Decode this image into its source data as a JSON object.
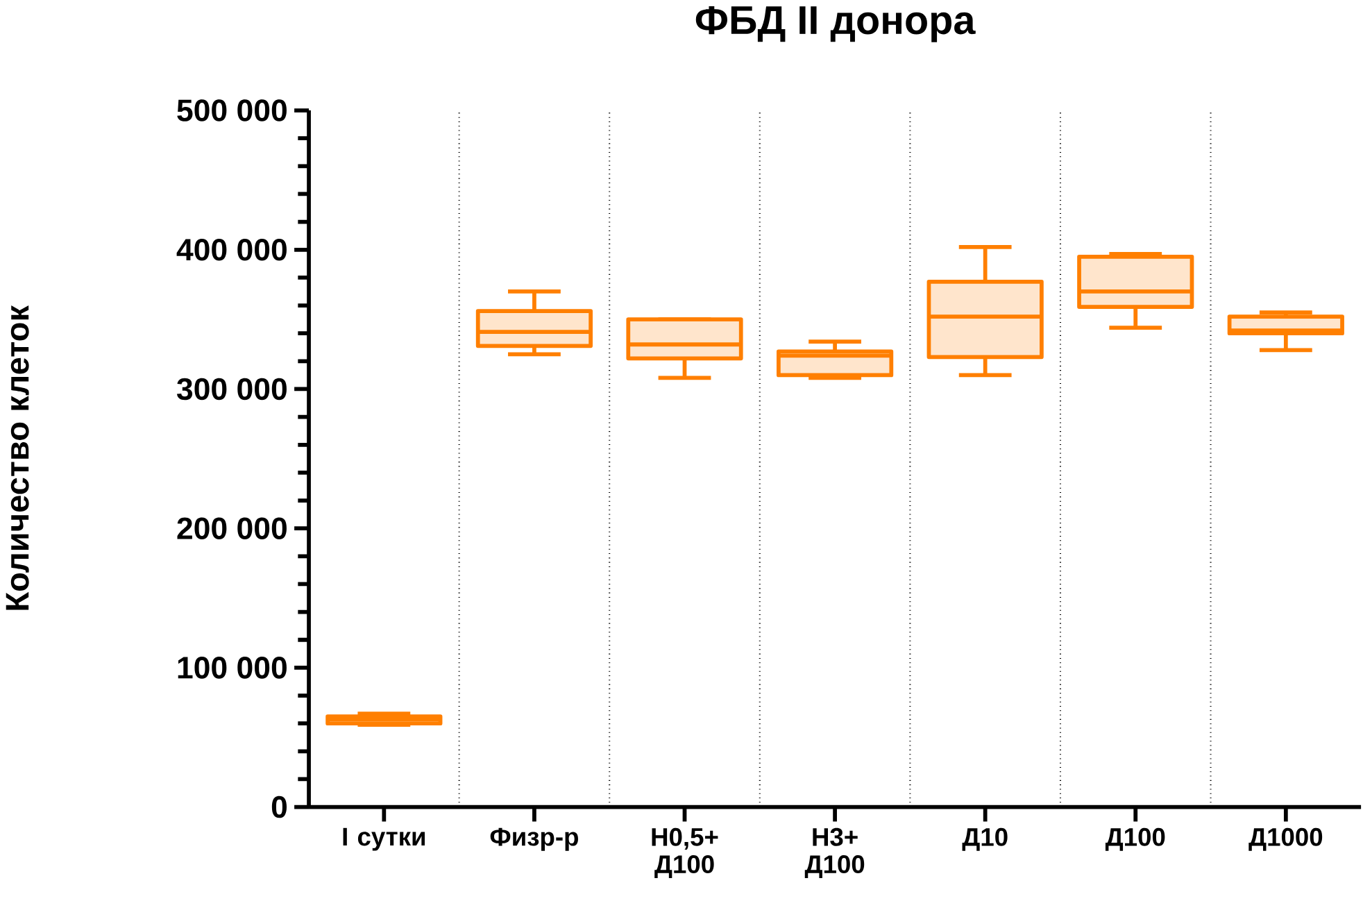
{
  "chart_data": {
    "type": "box",
    "title": "ФБД II донора",
    "ylabel": "Количество клеток",
    "categories": [
      "I сутки",
      "Физр-р",
      "Н0,5+ Д100",
      "Н3+ Д100",
      "Д10",
      "Д100",
      "Д1000"
    ],
    "color": "#ff7f00",
    "boxes": [
      {
        "low": 59000,
        "q1": 60000,
        "median": 63000,
        "q3": 65000,
        "high": 67000
      },
      {
        "low": 325000,
        "q1": 331000,
        "median": 341000,
        "q3": 356000,
        "high": 370000
      },
      {
        "low": 308000,
        "q1": 322000,
        "median": 332000,
        "q3": 350000,
        "high": 350000
      },
      {
        "low": 308000,
        "q1": 310000,
        "median": 324000,
        "q3": 327000,
        "high": 334000
      },
      {
        "low": 310000,
        "q1": 323000,
        "median": 352000,
        "q3": 377000,
        "high": 402000
      },
      {
        "low": 344000,
        "q1": 359000,
        "median": 370000,
        "q3": 395000,
        "high": 397000
      },
      {
        "low": 328000,
        "q1": 340000,
        "median": 342000,
        "q3": 352000,
        "high": 355000
      }
    ],
    "ylim": [
      0,
      500000
    ],
    "yticks": [
      0,
      {
        "value": 100000,
        "label": "100 000"
      },
      {
        "value": 200000,
        "label": "200 000"
      },
      {
        "value": 300000,
        "label": "300 000"
      },
      {
        "value": 400000,
        "label": "400 000"
      },
      {
        "value": 500000,
        "label": "500 000"
      }
    ],
    "grid": "x"
  }
}
